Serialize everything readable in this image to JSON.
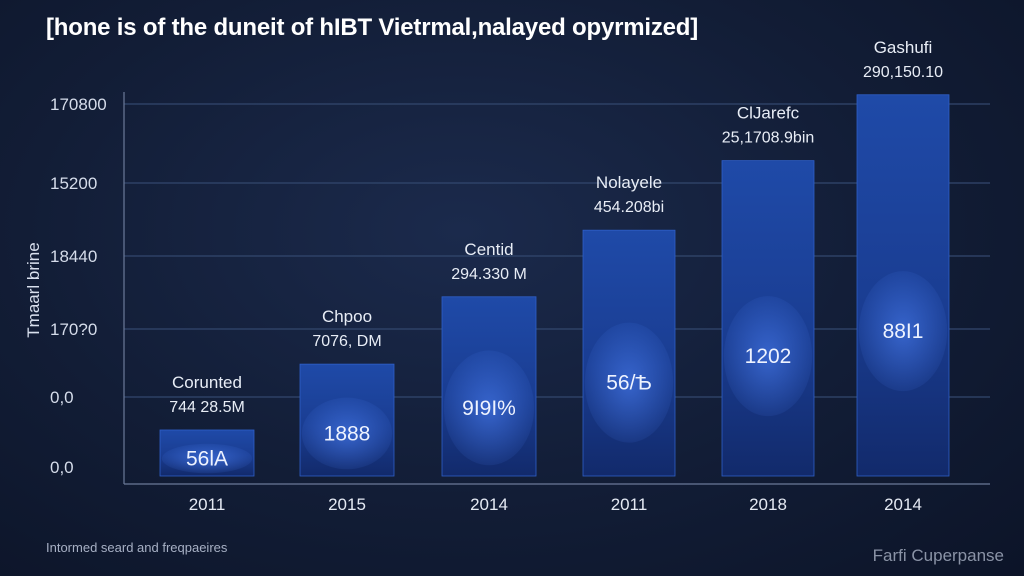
{
  "header": {
    "title": "[hone is of the duneit of hIBT Vietrmal,nalayed opyrmized]"
  },
  "footer": {
    "left_text": "Intormed seard and freqpaeires",
    "right_text": "Farfi Cuperpanse"
  },
  "chart_data": {
    "type": "bar",
    "title": "[hone is of the duneit of hIBT Vietrmal,nalayed opyrmized]",
    "ylabel": "Tmaarl brine",
    "xlabel": "",
    "y_ticks": [
      "0,0",
      "0,0",
      "170?0",
      "18440",
      "15200",
      "170800"
    ],
    "categories": [
      "2011",
      "2015",
      "2014",
      "2011",
      "2018",
      "2014"
    ],
    "values": [
      36.5,
      81,
      126.5,
      171.5,
      218.5,
      263
    ],
    "ylim": [
      0,
      300
    ],
    "grid": true,
    "bar_labels": [
      "56lA",
      "1888",
      "9I9I%",
      "56/Ѣ",
      "1202",
      "88I1"
    ],
    "annotations": [
      {
        "name": "Corunted",
        "value": "744 28.5M"
      },
      {
        "name": "Chpoo",
        "value": "7076, DM"
      },
      {
        "name": "Centid",
        "value": "294.330 M"
      },
      {
        "name": "Nolayele",
        "value": "454.208bi"
      },
      {
        "name": "ClJarefc",
        "value": "25,1708.9bin"
      },
      {
        "name": "Gashufi",
        "value": "290,150.10"
      }
    ],
    "colors": {
      "bar_top": "#1f4aa8",
      "bar_bottom": "#122a6b",
      "grid": "#33476e",
      "axis": "#6b7a99"
    }
  }
}
